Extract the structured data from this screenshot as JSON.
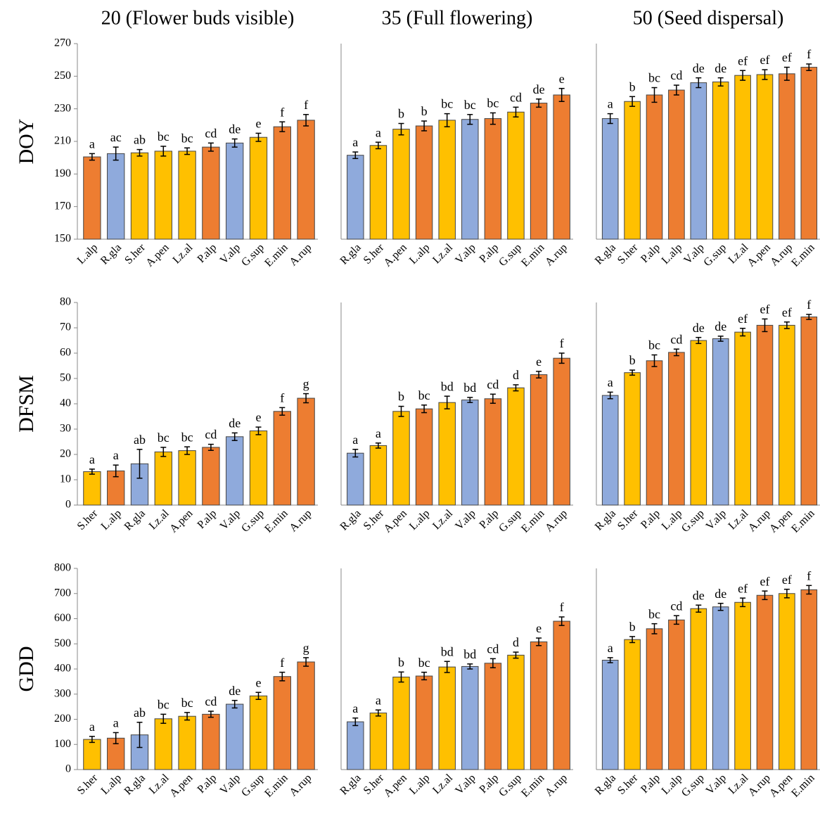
{
  "chart_data": [
    {
      "type": "bar",
      "title": "20 (Flower buds visible)",
      "y_label": "DOY",
      "categories": [
        "L.alp",
        "R.gla",
        "S.her",
        "A.pen",
        "Lz.al",
        "P.alp",
        "V.alp",
        "G.sup",
        "E.min",
        "A.rup"
      ],
      "values": [
        200.5,
        202.5,
        203,
        204,
        204,
        206.5,
        209,
        212.5,
        219,
        223
      ],
      "errors": [
        2,
        4,
        2,
        3,
        2,
        2.5,
        2.5,
        2.5,
        3,
        3.5
      ],
      "letters": [
        "a",
        "ac",
        "ab",
        "bc",
        "bc",
        "cd",
        "de",
        "e",
        "f",
        "f"
      ],
      "colors": [
        "#ed7d31",
        "#8faadc",
        "#ffc000",
        "#ffc000",
        "#ffc000",
        "#ed7d31",
        "#8faadc",
        "#ffc000",
        "#ed7d31",
        "#ed7d31"
      ],
      "ylim": [
        150,
        270
      ],
      "yticks": [
        150,
        170,
        190,
        210,
        230,
        250,
        270
      ]
    },
    {
      "type": "bar",
      "title": "35 (Full flowering)",
      "categories": [
        "R.gla",
        "S.her",
        "A.pen",
        "L.alp",
        "Lz.al",
        "V.alp",
        "P.alp",
        "G.sup",
        "E.min",
        "A.rup"
      ],
      "values": [
        201.5,
        207.5,
        217.5,
        219.5,
        223,
        223.5,
        224,
        228,
        233.5,
        238.5
      ],
      "errors": [
        2,
        2,
        3.5,
        3,
        4,
        3,
        3.5,
        3,
        2.5,
        4
      ],
      "letters": [
        "a",
        "a",
        "b",
        "b",
        "bc",
        "bc",
        "bc",
        "cd",
        "de",
        "e"
      ],
      "colors": [
        "#8faadc",
        "#ffc000",
        "#ffc000",
        "#ed7d31",
        "#ffc000",
        "#8faadc",
        "#ed7d31",
        "#ffc000",
        "#ed7d31",
        "#ed7d31"
      ],
      "ylim": [
        150,
        270
      ]
    },
    {
      "type": "bar",
      "title": "50 (Seed dispersal)",
      "categories": [
        "R.gla",
        "S.her",
        "P.alp",
        "L.alp",
        "V.alp",
        "G.sup",
        "Lz.al",
        "A.pen",
        "A.rup",
        "E.min"
      ],
      "values": [
        224,
        234.5,
        238.5,
        241.5,
        246,
        246.5,
        250.5,
        251,
        251.5,
        255.5
      ],
      "errors": [
        3,
        3,
        4.5,
        3,
        3,
        2.5,
        3,
        3,
        4,
        2
      ],
      "letters": [
        "a",
        "b",
        "bc",
        "cd",
        "de",
        "de",
        "ef",
        "ef",
        "ef",
        "f"
      ],
      "colors": [
        "#8faadc",
        "#ffc000",
        "#ed7d31",
        "#ed7d31",
        "#8faadc",
        "#ffc000",
        "#ffc000",
        "#ffc000",
        "#ed7d31",
        "#ed7d31"
      ],
      "ylim": [
        150,
        270
      ]
    },
    {
      "type": "bar",
      "y_label": "DFSM",
      "categories": [
        "S.her",
        "L.alp",
        "R.gla",
        "Lz.al",
        "A.pen",
        "P.alp",
        "V.alp",
        "G.sup",
        "E.min",
        "A.rup"
      ],
      "values": [
        13.2,
        13.5,
        16.3,
        21,
        21.5,
        22.8,
        27,
        29.3,
        37,
        42.2
      ],
      "errors": [
        1,
        2.3,
        5.7,
        1.8,
        1.5,
        1.2,
        1.5,
        1.5,
        1.5,
        1.8
      ],
      "letters": [
        "a",
        "a",
        "ab",
        "bc",
        "bc",
        "cd",
        "de",
        "e",
        "f",
        "g"
      ],
      "colors": [
        "#ffc000",
        "#ed7d31",
        "#8faadc",
        "#ffc000",
        "#ffc000",
        "#ed7d31",
        "#8faadc",
        "#ffc000",
        "#ed7d31",
        "#ed7d31"
      ],
      "ylim": [
        0,
        80
      ],
      "yticks": [
        0,
        10,
        20,
        30,
        40,
        50,
        60,
        70,
        80
      ]
    },
    {
      "type": "bar",
      "categories": [
        "R.gla",
        "S.her",
        "A.pen",
        "L.alp",
        "Lz.al",
        "V.alp",
        "P.alp",
        "G.sup",
        "E.min",
        "A.rup"
      ],
      "values": [
        20.5,
        23.5,
        37,
        38,
        40.5,
        41.5,
        42,
        46.3,
        51.5,
        58
      ],
      "errors": [
        1.5,
        1,
        2,
        1.5,
        2.5,
        1,
        1.8,
        1.2,
        1.3,
        2
      ],
      "letters": [
        "a",
        "a",
        "b",
        "bc",
        "bd",
        "bd",
        "cd",
        "d",
        "e",
        "f"
      ],
      "colors": [
        "#8faadc",
        "#ffc000",
        "#ffc000",
        "#ed7d31",
        "#ffc000",
        "#8faadc",
        "#ed7d31",
        "#ffc000",
        "#ed7d31",
        "#ed7d31"
      ],
      "ylim": [
        0,
        80
      ]
    },
    {
      "type": "bar",
      "categories": [
        "R.gla",
        "S.her",
        "P.alp",
        "L.alp",
        "G.sup",
        "V.alp",
        "Lz.al",
        "A.rup",
        "A.pen",
        "E.min"
      ],
      "values": [
        43.3,
        52.3,
        57,
        60.3,
        65,
        65.7,
        68.3,
        71,
        71,
        74.3
      ],
      "errors": [
        1.3,
        1,
        2.3,
        1.3,
        1.2,
        1,
        1.5,
        2.5,
        1.3,
        1
      ],
      "letters": [
        "a",
        "b",
        "bc",
        "cd",
        "de",
        "de",
        "ef",
        "ef",
        "ef",
        "f"
      ],
      "colors": [
        "#8faadc",
        "#ffc000",
        "#ed7d31",
        "#ed7d31",
        "#ffc000",
        "#8faadc",
        "#ffc000",
        "#ed7d31",
        "#ffc000",
        "#ed7d31"
      ],
      "ylim": [
        0,
        80
      ]
    },
    {
      "type": "bar",
      "y_label": "GDD",
      "categories": [
        "S.her",
        "L.alp",
        "R.gla",
        "Lz.al",
        "A.pen",
        "P.alp",
        "V.alp",
        "G.sup",
        "E.min",
        "A.rup"
      ],
      "values": [
        120,
        125,
        138,
        202,
        212,
        220,
        260,
        293,
        370,
        428
      ],
      "errors": [
        12,
        22,
        50,
        18,
        15,
        12,
        15,
        14,
        17,
        17
      ],
      "letters": [
        "a",
        "a",
        "ab",
        "bc",
        "bc",
        "cd",
        "de",
        "e",
        "f",
        "g"
      ],
      "colors": [
        "#ffc000",
        "#ed7d31",
        "#8faadc",
        "#ffc000",
        "#ffc000",
        "#ed7d31",
        "#8faadc",
        "#ffc000",
        "#ed7d31",
        "#ed7d31"
      ],
      "ylim": [
        0,
        800
      ],
      "yticks": [
        0,
        100,
        200,
        300,
        400,
        500,
        600,
        700,
        800
      ]
    },
    {
      "type": "bar",
      "categories": [
        "R.gla",
        "S.her",
        "A.pen",
        "L.alp",
        "Lz.al",
        "V.alp",
        "P.alp",
        "G.sup",
        "E.min",
        "A.rup"
      ],
      "values": [
        190,
        225,
        368,
        372,
        408,
        410,
        423,
        455,
        508,
        590
      ],
      "errors": [
        15,
        12,
        20,
        15,
        22,
        10,
        18,
        12,
        15,
        17
      ],
      "letters": [
        "a",
        "a",
        "b",
        "bc",
        "bd",
        "bd",
        "cd",
        "d",
        "e",
        "f"
      ],
      "colors": [
        "#8faadc",
        "#ffc000",
        "#ffc000",
        "#ed7d31",
        "#ffc000",
        "#8faadc",
        "#ed7d31",
        "#ffc000",
        "#ed7d31",
        "#ed7d31"
      ],
      "ylim": [
        0,
        800
      ]
    },
    {
      "type": "bar",
      "categories": [
        "R.gla",
        "S.her",
        "P.alp",
        "L.alp",
        "G.sup",
        "V.alp",
        "Lz.al",
        "A.rup",
        "A.pen",
        "E.min"
      ],
      "values": [
        435,
        517,
        560,
        595,
        640,
        647,
        665,
        693,
        700,
        715
      ],
      "errors": [
        10,
        12,
        20,
        17,
        14,
        14,
        17,
        17,
        17,
        17
      ],
      "letters": [
        "a",
        "b",
        "bc",
        "cd",
        "de",
        "de",
        "ef",
        "ef",
        "ef",
        "f"
      ],
      "colors": [
        "#8faadc",
        "#ffc000",
        "#ed7d31",
        "#ed7d31",
        "#ffc000",
        "#8faadc",
        "#ffc000",
        "#ed7d31",
        "#ffc000",
        "#ed7d31"
      ],
      "ylim": [
        0,
        800
      ]
    }
  ]
}
